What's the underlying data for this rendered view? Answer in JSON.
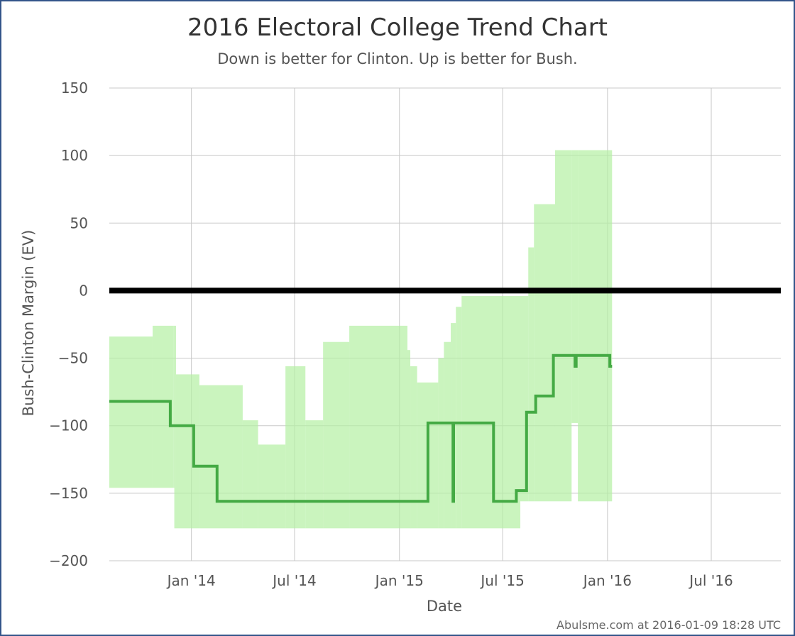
{
  "chart_data": {
    "type": "line",
    "title": "2016 Electoral College Trend Chart",
    "subtitle": "Down is better for Clinton. Up is better for Bush.",
    "xlabel": "Date",
    "ylabel": "Bush-Clinton Margin (EV)",
    "ylim": [
      -200,
      150
    ],
    "xlim": [
      "2013-08-10",
      "2016-10-31"
    ],
    "yticks": [
      150,
      100,
      50,
      0,
      -50,
      -100,
      -150,
      -200
    ],
    "ytick_labels": [
      "150",
      "100",
      "50",
      "0",
      "−50",
      "−100",
      "−150",
      "−200"
    ],
    "xticks": [
      {
        "date": "2014-01-01",
        "label": "Jan '14"
      },
      {
        "date": "2014-07-01",
        "label": "Jul '14"
      },
      {
        "date": "2015-01-01",
        "label": "Jan '15"
      },
      {
        "date": "2015-07-01",
        "label": "Jul '15"
      },
      {
        "date": "2016-01-01",
        "label": "Jan '16"
      },
      {
        "date": "2016-07-01",
        "label": "Jul '16"
      }
    ],
    "grid": true,
    "zero_line": {
      "y": 0,
      "color": "#000000"
    },
    "series": [
      {
        "kind": "range",
        "color": "#b3f0a3",
        "points": [
          {
            "x": "2013-08-10",
            "lo": -146,
            "hi": -34
          },
          {
            "x": "2013-10-25",
            "lo": -146,
            "hi": -26
          },
          {
            "x": "2013-12-01",
            "lo": -146,
            "hi": -26
          },
          {
            "x": "2013-12-02",
            "lo": -176,
            "hi": -26
          },
          {
            "x": "2013-12-05",
            "lo": -176,
            "hi": -62
          },
          {
            "x": "2014-01-15",
            "lo": -176,
            "hi": -70
          },
          {
            "x": "2014-04-01",
            "lo": -176,
            "hi": -96
          },
          {
            "x": "2014-04-28",
            "lo": -176,
            "hi": -114
          },
          {
            "x": "2014-06-15",
            "lo": -176,
            "hi": -56
          },
          {
            "x": "2014-07-20",
            "lo": -176,
            "hi": -96
          },
          {
            "x": "2014-08-20",
            "lo": -176,
            "hi": -38
          },
          {
            "x": "2014-10-05",
            "lo": -176,
            "hi": -26
          },
          {
            "x": "2015-01-15",
            "lo": -176,
            "hi": -44
          },
          {
            "x": "2015-01-20",
            "lo": -176,
            "hi": -56
          },
          {
            "x": "2015-02-01",
            "lo": -176,
            "hi": -68
          },
          {
            "x": "2015-03-10",
            "lo": -176,
            "hi": -50
          },
          {
            "x": "2015-03-20",
            "lo": -176,
            "hi": -38
          },
          {
            "x": "2015-04-01",
            "lo": -176,
            "hi": -24
          },
          {
            "x": "2015-04-10",
            "lo": -176,
            "hi": -12
          },
          {
            "x": "2015-04-20",
            "lo": -176,
            "hi": -4
          },
          {
            "x": "2015-08-01",
            "lo": -156,
            "hi": -4
          },
          {
            "x": "2015-08-15",
            "lo": -156,
            "hi": 32
          },
          {
            "x": "2015-08-25",
            "lo": -156,
            "hi": 64
          },
          {
            "x": "2015-10-01",
            "lo": -156,
            "hi": 104
          },
          {
            "x": "2015-10-30",
            "lo": -98,
            "hi": 104
          },
          {
            "x": "2015-11-10",
            "lo": -156,
            "hi": 104
          },
          {
            "x": "2016-01-09",
            "lo": -156,
            "hi": 104
          }
        ]
      },
      {
        "kind": "line",
        "color": "#44aa44",
        "points": [
          {
            "x": "2013-08-10",
            "y": -82
          },
          {
            "x": "2013-11-25",
            "y": -82
          },
          {
            "x": "2013-11-25",
            "y": -100
          },
          {
            "x": "2014-01-05",
            "y": -100
          },
          {
            "x": "2014-01-05",
            "y": -130
          },
          {
            "x": "2014-02-15",
            "y": -130
          },
          {
            "x": "2014-02-15",
            "y": -156
          },
          {
            "x": "2015-02-20",
            "y": -156
          },
          {
            "x": "2015-02-20",
            "y": -98
          },
          {
            "x": "2015-04-05",
            "y": -98
          },
          {
            "x": "2015-04-05",
            "y": -156
          },
          {
            "x": "2015-04-06",
            "y": -156
          },
          {
            "x": "2015-04-06",
            "y": -98
          },
          {
            "x": "2015-06-15",
            "y": -98
          },
          {
            "x": "2015-06-15",
            "y": -156
          },
          {
            "x": "2015-07-25",
            "y": -156
          },
          {
            "x": "2015-07-25",
            "y": -148
          },
          {
            "x": "2015-08-12",
            "y": -148
          },
          {
            "x": "2015-08-12",
            "y": -90
          },
          {
            "x": "2015-08-28",
            "y": -90
          },
          {
            "x": "2015-08-28",
            "y": -78
          },
          {
            "x": "2015-09-28",
            "y": -78
          },
          {
            "x": "2015-09-28",
            "y": -48
          },
          {
            "x": "2015-11-05",
            "y": -48
          },
          {
            "x": "2015-11-05",
            "y": -56
          },
          {
            "x": "2015-11-07",
            "y": -56
          },
          {
            "x": "2015-11-07",
            "y": -48
          },
          {
            "x": "2016-01-05",
            "y": -48
          },
          {
            "x": "2016-01-05",
            "y": -56
          },
          {
            "x": "2016-01-09",
            "y": -56
          }
        ]
      }
    ]
  },
  "credit": "Abulsme.com at 2016-01-09 18:28 UTC"
}
